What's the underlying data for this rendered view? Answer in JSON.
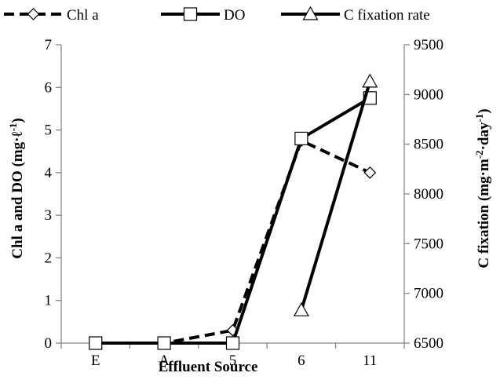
{
  "chart_data": {
    "type": "line",
    "categories": [
      "E",
      "A",
      "5",
      "6",
      "11"
    ],
    "xlabel": "Effluent Source",
    "ylabel_left": "Chl a and DO (mg·ℓ-1)",
    "ylabel_right": "C fixation (mg·m-2·day-1)",
    "ylim_left": [
      0,
      7
    ],
    "yticks_left": [
      "0",
      "1",
      "2",
      "3",
      "4",
      "5",
      "6",
      "7"
    ],
    "ylim_right": [
      6500,
      9500
    ],
    "yticks_right": [
      "6500",
      "7000",
      "7500",
      "8000",
      "8500",
      "9000",
      "9500"
    ],
    "grid": false,
    "legend_position": "top",
    "series": [
      {
        "name": "Chl a",
        "axis": "left",
        "line_style": "dashed",
        "marker": "diamond",
        "values": [
          0,
          0,
          0.3,
          4.75,
          4.0
        ]
      },
      {
        "name": "DO",
        "axis": "left",
        "line_style": "solid",
        "marker": "square",
        "values": [
          0,
          0,
          0,
          4.8,
          5.75
        ]
      },
      {
        "name": "C fixation rate",
        "axis": "right",
        "line_style": "solid",
        "marker": "triangle",
        "values": [
          null,
          null,
          null,
          6830,
          9130
        ]
      }
    ]
  }
}
